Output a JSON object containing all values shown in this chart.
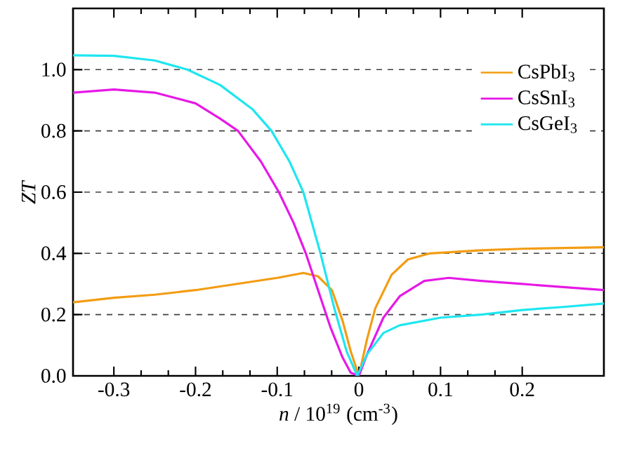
{
  "chart_data": {
    "type": "line",
    "xlabel": "*n* / 10$^{19}$ (cm$^{-3}$)",
    "ylabel": "*ZT*",
    "xlim": [
      -0.35,
      0.3
    ],
    "ylim": [
      0,
      1.2
    ],
    "xticks": [
      -0.3,
      -0.2,
      -0.1,
      0,
      0.1,
      0.2
    ],
    "yticks": [
      {
        "value": 0,
        "label": "0.0"
      },
      0.2,
      0.4,
      0.6,
      0.8,
      {
        "value": 1.0,
        "label": "1.0"
      }
    ],
    "grid": "y",
    "legend": "top right",
    "line_style": "solid",
    "marker": "none",
    "series": [
      {
        "name": "CsPbI$_{3}$",
        "color": "#f39c12",
        "x": [
          -0.35,
          -0.3,
          -0.25,
          -0.2,
          -0.15,
          -0.1,
          -0.068,
          -0.05,
          -0.033,
          -0.02,
          -0.01,
          0,
          0.01,
          0.02,
          0.04,
          0.06,
          0.087,
          0.15,
          0.2,
          0.3
        ],
        "values": [
          0.24,
          0.255,
          0.265,
          0.28,
          0.3,
          0.32,
          0.336,
          0.325,
          0.28,
          0.18,
          0.08,
          0,
          0.12,
          0.22,
          0.33,
          0.38,
          0.4,
          0.41,
          0.415,
          0.42
        ]
      },
      {
        "name": "CsSnI$_{3}$",
        "color": "#e619e6",
        "x": [
          -0.35,
          -0.3,
          -0.25,
          -0.2,
          -0.17,
          -0.148,
          -0.12,
          -0.098,
          -0.08,
          -0.065,
          -0.05,
          -0.035,
          -0.02,
          -0.01,
          0,
          0.01,
          0.03,
          0.05,
          0.08,
          0.11,
          0.15,
          0.2,
          0.25,
          0.3
        ],
        "values": [
          0.925,
          0.935,
          0.925,
          0.89,
          0.84,
          0.8,
          0.7,
          0.6,
          0.5,
          0.4,
          0.28,
          0.16,
          0.06,
          0.01,
          0,
          0.07,
          0.19,
          0.26,
          0.31,
          0.32,
          0.31,
          0.3,
          0.29,
          0.28
        ]
      },
      {
        "name": "CsGeI$_{3}$",
        "color": "#1ee6f0",
        "x": [
          -0.35,
          -0.3,
          -0.25,
          -0.21,
          -0.17,
          -0.13,
          -0.107,
          -0.085,
          -0.068,
          -0.047,
          -0.03,
          -0.015,
          -0.002,
          0.01,
          0.03,
          0.05,
          0.1,
          0.15,
          0.2,
          0.25,
          0.3
        ],
        "values": [
          1.047,
          1.045,
          1.03,
          1.0,
          0.95,
          0.87,
          0.8,
          0.7,
          0.6,
          0.4,
          0.22,
          0.08,
          0,
          0.07,
          0.14,
          0.165,
          0.19,
          0.2,
          0.215,
          0.225,
          0.236
        ]
      }
    ]
  }
}
